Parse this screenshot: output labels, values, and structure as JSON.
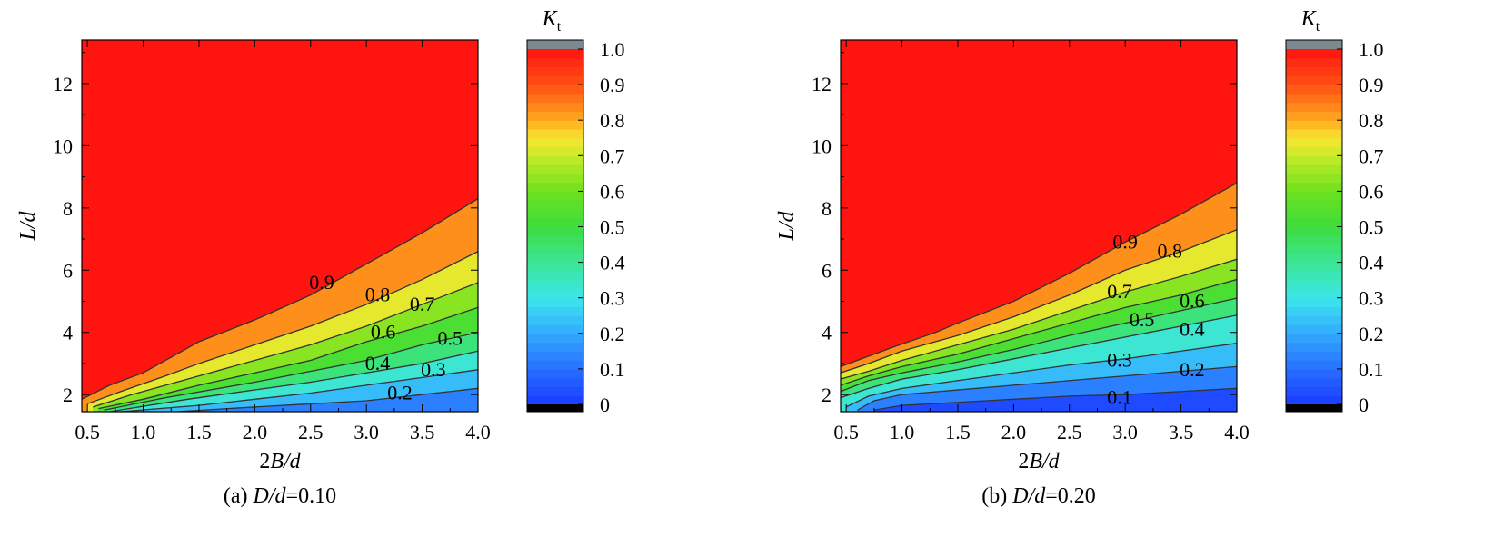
{
  "chart_data": [
    {
      "type": "contour",
      "caption_prefix": "(a) ",
      "caption_var": "D/d",
      "caption_value": "=0.10",
      "xlabel_pre": "2",
      "xlabel_var": "B/d",
      "ylabel": "L/d",
      "xlim": [
        0.45,
        4.0
      ],
      "ylim": [
        1.45,
        13.4
      ],
      "xticks": [
        "0.5",
        "1.0",
        "1.5",
        "2.0",
        "2.5",
        "3.0",
        "3.5",
        "4.0"
      ],
      "xtick_values": [
        0.5,
        1.0,
        1.5,
        2.0,
        2.5,
        3.0,
        3.5,
        4.0
      ],
      "yticks": [
        "2",
        "4",
        "6",
        "8",
        "10",
        "12"
      ],
      "ytick_values": [
        2,
        4,
        6,
        8,
        10,
        12
      ],
      "colorbar": {
        "title_var": "K",
        "title_sub": "t",
        "ticks": [
          "0",
          "0.1",
          "0.2",
          "0.3",
          "0.4",
          "0.5",
          "0.6",
          "0.7",
          "0.8",
          "0.9",
          "1.0"
        ],
        "tick_values": [
          0,
          0.1,
          0.2,
          0.3,
          0.4,
          0.5,
          0.6,
          0.7,
          0.8,
          0.9,
          1.0
        ]
      },
      "contours": [
        {
          "level": 0.9,
          "label": "0.9",
          "label_at": [
            2.6,
            5.6
          ],
          "points": [
            [
              0.45,
              1.85
            ],
            [
              0.7,
              2.3
            ],
            [
              1.0,
              2.7
            ],
            [
              1.3,
              3.3
            ],
            [
              1.5,
              3.7
            ],
            [
              2.0,
              4.4
            ],
            [
              2.5,
              5.2
            ],
            [
              3.0,
              6.2
            ],
            [
              3.5,
              7.2
            ],
            [
              4.0,
              8.3
            ]
          ]
        },
        {
          "level": 0.8,
          "label": "0.8",
          "label_at": [
            3.1,
            5.2
          ],
          "points": [
            [
              0.5,
              1.7
            ],
            [
              0.8,
              2.1
            ],
            [
              1.2,
              2.6
            ],
            [
              1.5,
              3.0
            ],
            [
              2.0,
              3.6
            ],
            [
              2.5,
              4.2
            ],
            [
              3.0,
              4.9
            ],
            [
              3.5,
              5.7
            ],
            [
              4.0,
              6.6
            ]
          ]
        },
        {
          "level": 0.7,
          "label": "0.7",
          "label_at": [
            3.5,
            4.9
          ],
          "points": [
            [
              0.55,
              1.6
            ],
            [
              0.9,
              2.0
            ],
            [
              1.3,
              2.4
            ],
            [
              2.0,
              3.1
            ],
            [
              2.5,
              3.6
            ],
            [
              3.0,
              4.2
            ],
            [
              3.5,
              4.9
            ],
            [
              4.0,
              5.6
            ]
          ]
        },
        {
          "level": 0.6,
          "label": "0.6",
          "label_at": [
            3.15,
            4.0
          ],
          "points": [
            [
              0.6,
              1.55
            ],
            [
              1.0,
              1.85
            ],
            [
              1.5,
              2.3
            ],
            [
              2.0,
              2.7
            ],
            [
              2.5,
              3.1
            ],
            [
              3.0,
              3.7
            ],
            [
              3.5,
              4.2
            ],
            [
              4.0,
              4.8
            ]
          ]
        },
        {
          "level": 0.5,
          "label": "0.5",
          "label_at": [
            3.75,
            3.8
          ],
          "points": [
            [
              0.65,
              1.5
            ],
            [
              1.2,
              1.9
            ],
            [
              2.0,
              2.4
            ],
            [
              2.5,
              2.75
            ],
            [
              3.0,
              3.1
            ],
            [
              3.5,
              3.6
            ],
            [
              4.0,
              4.0
            ]
          ]
        },
        {
          "level": 0.4,
          "label": "0.4",
          "label_at": [
            3.1,
            3.0
          ],
          "points": [
            [
              0.7,
              1.45
            ],
            [
              1.4,
              1.85
            ],
            [
              2.0,
              2.15
            ],
            [
              2.5,
              2.4
            ],
            [
              3.0,
              2.7
            ],
            [
              3.5,
              3.0
            ],
            [
              4.0,
              3.4
            ]
          ]
        },
        {
          "level": 0.3,
          "label": "0.3",
          "label_at": [
            3.6,
            2.8
          ],
          "points": [
            [
              0.8,
              1.45
            ],
            [
              1.5,
              1.65
            ],
            [
              2.0,
              1.85
            ],
            [
              2.5,
              2.05
            ],
            [
              3.0,
              2.3
            ],
            [
              3.5,
              2.55
            ],
            [
              4.0,
              2.8
            ]
          ]
        },
        {
          "level": 0.2,
          "label": "0.2",
          "label_at": [
            3.3,
            2.05
          ],
          "points": [
            [
              1.3,
              1.45
            ],
            [
              2.0,
              1.6
            ],
            [
              2.5,
              1.7
            ],
            [
              3.0,
              1.8
            ],
            [
              3.5,
              2.0
            ],
            [
              4.0,
              2.2
            ]
          ]
        }
      ]
    },
    {
      "type": "contour",
      "caption_prefix": "(b) ",
      "caption_var": "D/d",
      "caption_value": "=0.20",
      "xlabel_pre": "2",
      "xlabel_var": "B/d",
      "ylabel": "L/d",
      "xlim": [
        0.45,
        4.0
      ],
      "ylim": [
        1.45,
        13.4
      ],
      "xticks": [
        "0.5",
        "1.0",
        "1.5",
        "2.0",
        "2.5",
        "3.0",
        "3.5",
        "4.0"
      ],
      "xtick_values": [
        0.5,
        1.0,
        1.5,
        2.0,
        2.5,
        3.0,
        3.5,
        4.0
      ],
      "yticks": [
        "2",
        "4",
        "6",
        "8",
        "10",
        "12"
      ],
      "ytick_values": [
        2,
        4,
        6,
        8,
        10,
        12
      ],
      "colorbar": {
        "title_var": "K",
        "title_sub": "t",
        "ticks": [
          "0",
          "0.1",
          "0.2",
          "0.3",
          "0.4",
          "0.5",
          "0.6",
          "0.7",
          "0.8",
          "0.9",
          "1.0"
        ],
        "tick_values": [
          0,
          0.1,
          0.2,
          0.3,
          0.4,
          0.5,
          0.6,
          0.7,
          0.8,
          0.9,
          1.0
        ]
      },
      "contours": [
        {
          "level": 0.9,
          "label": "0.9",
          "label_at": [
            3.0,
            6.9
          ],
          "points": [
            [
              0.45,
              2.9
            ],
            [
              0.6,
              3.1
            ],
            [
              0.9,
              3.5
            ],
            [
              1.3,
              4.0
            ],
            [
              1.5,
              4.3
            ],
            [
              2.0,
              5.0
            ],
            [
              2.5,
              5.9
            ],
            [
              3.0,
              6.9
            ],
            [
              3.5,
              7.8
            ],
            [
              4.0,
              8.8
            ]
          ]
        },
        {
          "level": 0.8,
          "label": "0.8",
          "label_at": [
            3.4,
            6.6
          ],
          "points": [
            [
              0.45,
              2.7
            ],
            [
              0.7,
              3.0
            ],
            [
              1.0,
              3.4
            ],
            [
              1.5,
              3.9
            ],
            [
              2.0,
              4.5
            ],
            [
              2.5,
              5.2
            ],
            [
              3.0,
              6.0
            ],
            [
              3.5,
              6.6
            ],
            [
              4.0,
              7.3
            ]
          ]
        },
        {
          "level": 0.7,
          "label": "0.7",
          "label_at": [
            2.95,
            5.3
          ],
          "points": [
            [
              0.45,
              2.5
            ],
            [
              0.7,
              2.75
            ],
            [
              1.0,
              3.1
            ],
            [
              1.5,
              3.6
            ],
            [
              2.0,
              4.1
            ],
            [
              2.5,
              4.7
            ],
            [
              3.0,
              5.3
            ],
            [
              3.5,
              5.8
            ],
            [
              4.0,
              6.35
            ]
          ]
        },
        {
          "level": 0.6,
          "label": "0.6",
          "label_at": [
            3.6,
            5.0
          ],
          "points": [
            [
              0.45,
              2.3
            ],
            [
              0.7,
              2.6
            ],
            [
              1.0,
              2.9
            ],
            [
              1.5,
              3.3
            ],
            [
              2.0,
              3.8
            ],
            [
              2.5,
              4.3
            ],
            [
              3.0,
              4.8
            ],
            [
              3.5,
              5.2
            ],
            [
              4.0,
              5.7
            ]
          ]
        },
        {
          "level": 0.5,
          "label": "0.5",
          "label_at": [
            3.15,
            4.4
          ],
          "points": [
            [
              0.45,
              2.1
            ],
            [
              0.7,
              2.45
            ],
            [
              1.0,
              2.7
            ],
            [
              1.5,
              3.05
            ],
            [
              2.0,
              3.45
            ],
            [
              2.5,
              3.9
            ],
            [
              3.0,
              4.3
            ],
            [
              3.5,
              4.7
            ],
            [
              4.0,
              5.1
            ]
          ]
        },
        {
          "level": 0.4,
          "label": "0.4",
          "label_at": [
            3.6,
            4.1
          ],
          "points": [
            [
              0.45,
              1.9
            ],
            [
              0.7,
              2.2
            ],
            [
              1.0,
              2.5
            ],
            [
              1.5,
              2.8
            ],
            [
              2.0,
              3.15
            ],
            [
              2.5,
              3.5
            ],
            [
              3.0,
              3.85
            ],
            [
              3.5,
              4.2
            ],
            [
              4.0,
              4.55
            ]
          ]
        },
        {
          "level": 0.3,
          "label": "0.3",
          "label_at": [
            2.95,
            3.1
          ],
          "points": [
            [
              0.5,
              1.6
            ],
            [
              0.7,
              1.95
            ],
            [
              1.0,
              2.2
            ],
            [
              1.5,
              2.45
            ],
            [
              2.0,
              2.7
            ],
            [
              2.5,
              2.95
            ],
            [
              3.0,
              3.15
            ],
            [
              3.5,
              3.4
            ],
            [
              4.0,
              3.65
            ]
          ]
        },
        {
          "level": 0.2,
          "label": "0.2",
          "label_at": [
            3.6,
            2.8
          ],
          "points": [
            [
              0.6,
              1.5
            ],
            [
              0.75,
              1.8
            ],
            [
              1.0,
              2.0
            ],
            [
              1.5,
              2.15
            ],
            [
              2.0,
              2.3
            ],
            [
              2.5,
              2.45
            ],
            [
              3.0,
              2.6
            ],
            [
              3.5,
              2.75
            ],
            [
              4.0,
              2.9
            ]
          ]
        },
        {
          "level": 0.1,
          "label": "0.1",
          "label_at": [
            2.95,
            1.9
          ],
          "points": [
            [
              0.75,
              1.5
            ],
            [
              1.0,
              1.65
            ],
            [
              1.5,
              1.75
            ],
            [
              2.0,
              1.85
            ],
            [
              2.5,
              1.95
            ],
            [
              3.0,
              2.0
            ],
            [
              3.5,
              2.1
            ],
            [
              4.0,
              2.2
            ]
          ]
        }
      ]
    }
  ],
  "colors": {
    "high": "#ff1a10",
    "low": "#1e50ff",
    "over": "#7c8a90",
    "under": "#000000",
    "contour_line": "#333333"
  }
}
